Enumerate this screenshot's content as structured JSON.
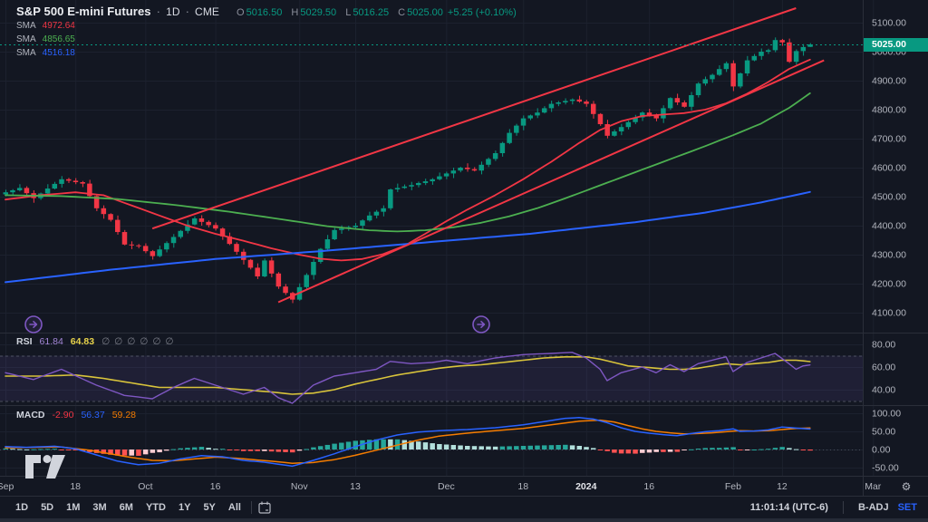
{
  "header": {
    "symbol": "S&P 500 E-mini Futures",
    "separator1": "·",
    "interval": "1D",
    "separator2": "·",
    "exchange": "CME",
    "ohlc": {
      "o_label": "O",
      "o": "5016.50",
      "h_label": "H",
      "h": "5029.50",
      "l_label": "L",
      "l": "5016.25",
      "c_label": "C",
      "c": "5025.00",
      "change": "+5.25 (+0.10%)"
    },
    "sma_rows": [
      {
        "label": "SMA",
        "value": "4972.64",
        "color": "#f23645"
      },
      {
        "label": "SMA",
        "value": "4856.65",
        "color": "#4caf50"
      },
      {
        "label": "SMA",
        "value": "4516.18",
        "color": "#2962ff"
      }
    ]
  },
  "rsi_row": {
    "label": "RSI",
    "rsi": "61.84",
    "rsi_color": "#a487d8",
    "rsi_ma": "64.83",
    "rsi_ma_color": "#e7d24b",
    "empties": [
      "∅",
      "∅",
      "∅",
      "∅",
      "∅",
      "∅"
    ]
  },
  "macd_row": {
    "label": "MACD",
    "hist": "-2.90",
    "hist_color": "#f23645",
    "macd": "56.37",
    "macd_color": "#2962ff",
    "signal": "59.28",
    "signal_color": "#f57c00"
  },
  "toolbar": {
    "ranges": [
      "1D",
      "5D",
      "1M",
      "3M",
      "6M",
      "YTD",
      "1Y",
      "5Y",
      "All"
    ],
    "clock": "11:01:14 (UTC-6)",
    "adjustment": "B-ADJ",
    "session": "SET"
  },
  "colors": {
    "background": "#131722",
    "grid": "#1c212e",
    "separator": "#2a2e39",
    "axis_text": "#b2b5be",
    "up": "#089981",
    "down": "#f23645",
    "price_line": "#089981",
    "price_tag_bg": "#089981",
    "sma_fast": "#f23645",
    "sma_mid": "#4caf50",
    "sma_slow": "#2962ff",
    "channel": "#f23645",
    "rsi_line": "#7e57c2",
    "rsi_ma_line": "#d9c43b",
    "rsi_band_fill": "rgba(126,87,194,0.12)",
    "macd_line": "#2962ff",
    "signal_line": "#f57c00",
    "hist_up": "#26a69a",
    "hist_up_weak": "#b2dfdb",
    "hist_down": "#ff5252",
    "hist_down_weak": "#ffcdd2",
    "pane_icon": "#7e57c2",
    "logo": "#d1d4dc"
  },
  "chart_data": {
    "type": "candlestick",
    "title": "S&P 500 E-mini Futures · 1D · CME",
    "x_unit": "trading_day_index",
    "ylim": [
      4030,
      5180
    ],
    "price_ticks": [
      5100,
      5000,
      4900,
      4800,
      4700,
      4600,
      4500,
      4400,
      4300,
      4200,
      4100
    ],
    "time_ticks": [
      {
        "day": 0,
        "label": "Sep"
      },
      {
        "day": 10,
        "label": "18"
      },
      {
        "day": 20,
        "label": "Oct"
      },
      {
        "day": 30,
        "label": "16"
      },
      {
        "day": 42,
        "label": "Nov"
      },
      {
        "day": 50,
        "label": "13"
      },
      {
        "day": 63,
        "label": "Dec"
      },
      {
        "day": 74,
        "label": "18"
      },
      {
        "day": 83,
        "label": "2024"
      },
      {
        "day": 92,
        "label": "16"
      },
      {
        "day": 104,
        "label": "Feb"
      },
      {
        "day": 111,
        "label": "12"
      },
      {
        "day": 124,
        "label": "Mar"
      }
    ],
    "last_price_line": 5025.0,
    "candles": {
      "first_open": 4508,
      "closes": [
        4515,
        4522,
        4530,
        4512,
        4495,
        4511,
        4528,
        4544,
        4560,
        4555,
        4550,
        4545,
        4502,
        4460,
        4440,
        4420,
        4378,
        4335,
        4332,
        4330,
        4312,
        4295,
        4318,
        4340,
        4361,
        4382,
        4404,
        4425,
        4413,
        4402,
        4390,
        4363,
        4337,
        4310,
        4282,
        4255,
        4225,
        4280,
        4235,
        4190,
        4168,
        4145,
        4188,
        4230,
        4275,
        4320,
        4353,
        4385,
        4390,
        4395,
        4400,
        4418,
        4435,
        4448,
        4460,
        4525,
        4530,
        4535,
        4540,
        4547,
        4553,
        4560,
        4570,
        4580,
        4590,
        4600,
        4595,
        4590,
        4610,
        4630,
        4650,
        4685,
        4720,
        4745,
        4770,
        4780,
        4790,
        4805,
        4820,
        4825,
        4830,
        4835,
        4828,
        4820,
        4785,
        4750,
        4710,
        4725,
        4740,
        4757,
        4773,
        4790,
        4780,
        4770,
        4805,
        4840,
        4825,
        4810,
        4850,
        4890,
        4905,
        4920,
        4940,
        4960,
        4880,
        4925,
        4970,
        4985,
        5000,
        5005,
        5040,
        5032,
        4965,
        5002,
        5016,
        5025
      ],
      "wick_high_pattern": [
        9,
        4,
        13,
        6,
        10,
        3,
        15,
        7,
        11,
        5
      ],
      "wick_low_pattern": [
        7,
        12,
        4,
        10,
        16,
        6,
        9,
        3,
        13,
        8
      ],
      "last_candle": {
        "o": 5016.5,
        "h": 5029.5,
        "l": 5016.25,
        "c": 5025.0
      }
    },
    "moving_averages": [
      {
        "name": "SMA fast",
        "current": 4972.64,
        "color_key": "sma_fast",
        "width": 1.8,
        "anchors": [
          [
            0,
            4490
          ],
          [
            5,
            4505
          ],
          [
            10,
            4515
          ],
          [
            14,
            4505
          ],
          [
            18,
            4470
          ],
          [
            22,
            4435
          ],
          [
            26,
            4400
          ],
          [
            30,
            4372
          ],
          [
            34,
            4348
          ],
          [
            38,
            4322
          ],
          [
            42,
            4300
          ],
          [
            45,
            4286
          ],
          [
            48,
            4280
          ],
          [
            51,
            4285
          ],
          [
            54,
            4302
          ],
          [
            57,
            4330
          ],
          [
            60,
            4372
          ],
          [
            63,
            4415
          ],
          [
            66,
            4455
          ],
          [
            70,
            4505
          ],
          [
            74,
            4560
          ],
          [
            78,
            4620
          ],
          [
            82,
            4685
          ],
          [
            85,
            4730
          ],
          [
            88,
            4760
          ],
          [
            91,
            4778
          ],
          [
            94,
            4783
          ],
          [
            97,
            4788
          ],
          [
            100,
            4800
          ],
          [
            103,
            4822
          ],
          [
            106,
            4855
          ],
          [
            109,
            4895
          ],
          [
            112,
            4940
          ],
          [
            115,
            4972.6
          ]
        ]
      },
      {
        "name": "SMA mid",
        "current": 4856.65,
        "color_key": "sma_mid",
        "width": 1.8,
        "anchors": [
          [
            0,
            4505
          ],
          [
            8,
            4502
          ],
          [
            16,
            4492
          ],
          [
            24,
            4472
          ],
          [
            32,
            4448
          ],
          [
            40,
            4420
          ],
          [
            46,
            4398
          ],
          [
            52,
            4384
          ],
          [
            56,
            4380
          ],
          [
            60,
            4384
          ],
          [
            64,
            4394
          ],
          [
            68,
            4410
          ],
          [
            72,
            4432
          ],
          [
            76,
            4460
          ],
          [
            80,
            4494
          ],
          [
            84,
            4530
          ],
          [
            88,
            4566
          ],
          [
            92,
            4602
          ],
          [
            96,
            4638
          ],
          [
            100,
            4674
          ],
          [
            104,
            4712
          ],
          [
            108,
            4752
          ],
          [
            112,
            4806
          ],
          [
            115,
            4856.6
          ]
        ]
      },
      {
        "name": "SMA slow",
        "current": 4516.18,
        "color_key": "sma_slow",
        "width": 2,
        "anchors": [
          [
            0,
            4205
          ],
          [
            15,
            4248
          ],
          [
            30,
            4285
          ],
          [
            45,
            4312
          ],
          [
            60,
            4342
          ],
          [
            75,
            4372
          ],
          [
            90,
            4412
          ],
          [
            100,
            4445
          ],
          [
            108,
            4480
          ],
          [
            115,
            4516.2
          ]
        ]
      }
    ],
    "trend_channel": [
      {
        "name": "upper",
        "from_day": 21,
        "from_price": 4390,
        "to_day": 113,
        "to_price": 5150
      },
      {
        "name": "lower",
        "from_day": 39,
        "from_price": 4136,
        "to_day": 117,
        "to_price": 4970
      }
    ],
    "rsi_pane": {
      "ticks": [
        80,
        60,
        40
      ],
      "bands": [
        70,
        30
      ],
      "current_rsi": 61.84,
      "current_rsi_ma": 64.83,
      "rsi_anchors": [
        [
          0,
          55
        ],
        [
          4,
          49
        ],
        [
          8,
          58
        ],
        [
          13,
          44
        ],
        [
          17,
          35
        ],
        [
          21,
          32
        ],
        [
          24,
          42
        ],
        [
          27,
          50
        ],
        [
          31,
          42
        ],
        [
          34,
          36
        ],
        [
          37,
          42
        ],
        [
          39,
          33
        ],
        [
          41,
          28
        ],
        [
          44,
          44
        ],
        [
          47,
          52
        ],
        [
          50,
          55
        ],
        [
          53,
          58
        ],
        [
          55,
          65
        ],
        [
          58,
          63
        ],
        [
          61,
          64
        ],
        [
          63,
          66
        ],
        [
          66,
          63
        ],
        [
          70,
          68
        ],
        [
          74,
          71
        ],
        [
          78,
          72
        ],
        [
          81,
          73
        ],
        [
          83,
          68
        ],
        [
          85,
          58
        ],
        [
          86,
          48
        ],
        [
          88,
          55
        ],
        [
          91,
          60
        ],
        [
          93,
          55
        ],
        [
          95,
          62
        ],
        [
          97,
          56
        ],
        [
          99,
          63
        ],
        [
          101,
          66
        ],
        [
          103,
          69
        ],
        [
          104,
          56
        ],
        [
          106,
          64
        ],
        [
          108,
          68
        ],
        [
          110,
          72
        ],
        [
          112,
          63
        ],
        [
          113,
          58
        ],
        [
          114,
          61
        ],
        [
          115,
          61.84
        ]
      ],
      "rsi_ma_anchors": [
        [
          0,
          52
        ],
        [
          5,
          52
        ],
        [
          10,
          53
        ],
        [
          14,
          50
        ],
        [
          18,
          46
        ],
        [
          22,
          42
        ],
        [
          26,
          42
        ],
        [
          30,
          42
        ],
        [
          34,
          40
        ],
        [
          38,
          38
        ],
        [
          41,
          36
        ],
        [
          44,
          37
        ],
        [
          47,
          40
        ],
        [
          50,
          45
        ],
        [
          53,
          49
        ],
        [
          56,
          53
        ],
        [
          59,
          56
        ],
        [
          62,
          59
        ],
        [
          65,
          61
        ],
        [
          68,
          62
        ],
        [
          71,
          64
        ],
        [
          74,
          66
        ],
        [
          77,
          68
        ],
        [
          80,
          69
        ],
        [
          83,
          69
        ],
        [
          85,
          67
        ],
        [
          87,
          64
        ],
        [
          89,
          61
        ],
        [
          91,
          60
        ],
        [
          93,
          59
        ],
        [
          95,
          58
        ],
        [
          97,
          58
        ],
        [
          99,
          59
        ],
        [
          101,
          61
        ],
        [
          103,
          63
        ],
        [
          105,
          62
        ],
        [
          107,
          63
        ],
        [
          109,
          64
        ],
        [
          111,
          66
        ],
        [
          113,
          66
        ],
        [
          115,
          64.83
        ]
      ]
    },
    "macd_pane": {
      "ticks": [
        100,
        50,
        0,
        -50
      ],
      "current_hist": -2.9,
      "current_macd": 56.37,
      "current_signal": 59.28,
      "macd_anchors": [
        [
          0,
          8
        ],
        [
          3,
          6
        ],
        [
          7,
          9
        ],
        [
          10,
          2
        ],
        [
          13,
          -15
        ],
        [
          16,
          -32
        ],
        [
          19,
          -42
        ],
        [
          22,
          -38
        ],
        [
          25,
          -26
        ],
        [
          28,
          -17
        ],
        [
          31,
          -20
        ],
        [
          34,
          -30
        ],
        [
          37,
          -35
        ],
        [
          41,
          -46
        ],
        [
          44,
          -30
        ],
        [
          47,
          -12
        ],
        [
          50,
          8
        ],
        [
          53,
          26
        ],
        [
          56,
          40
        ],
        [
          59,
          48
        ],
        [
          62,
          52
        ],
        [
          66,
          55
        ],
        [
          70,
          60
        ],
        [
          74,
          68
        ],
        [
          78,
          80
        ],
        [
          80,
          86
        ],
        [
          82,
          88
        ],
        [
          84,
          84
        ],
        [
          86,
          74
        ],
        [
          88,
          60
        ],
        [
          90,
          50
        ],
        [
          92,
          45
        ],
        [
          94,
          41
        ],
        [
          96,
          38
        ],
        [
          98,
          44
        ],
        [
          100,
          49
        ],
        [
          102,
          52
        ],
        [
          104,
          57
        ],
        [
          105,
          50
        ],
        [
          107,
          51
        ],
        [
          109,
          54
        ],
        [
          111,
          62
        ],
        [
          113,
          59
        ],
        [
          115,
          56.4
        ]
      ],
      "signal_anchors": [
        [
          0,
          5
        ],
        [
          4,
          6
        ],
        [
          8,
          7
        ],
        [
          12,
          -2
        ],
        [
          15,
          -12
        ],
        [
          18,
          -22
        ],
        [
          21,
          -30
        ],
        [
          24,
          -31
        ],
        [
          27,
          -26
        ],
        [
          30,
          -21
        ],
        [
          33,
          -24
        ],
        [
          36,
          -29
        ],
        [
          39,
          -34
        ],
        [
          41,
          -38
        ],
        [
          44,
          -36
        ],
        [
          47,
          -28
        ],
        [
          50,
          -16
        ],
        [
          53,
          -2
        ],
        [
          56,
          12
        ],
        [
          59,
          26
        ],
        [
          62,
          37
        ],
        [
          66,
          45
        ],
        [
          70,
          52
        ],
        [
          74,
          58
        ],
        [
          78,
          68
        ],
        [
          82,
          78
        ],
        [
          85,
          81
        ],
        [
          87,
          76
        ],
        [
          89,
          66
        ],
        [
          91,
          57
        ],
        [
          93,
          50
        ],
        [
          95,
          46
        ],
        [
          97,
          43
        ],
        [
          99,
          44
        ],
        [
          101,
          46
        ],
        [
          103,
          49
        ],
        [
          105,
          52
        ],
        [
          107,
          51
        ],
        [
          109,
          52
        ],
        [
          111,
          55
        ],
        [
          113,
          58
        ],
        [
          115,
          59.3
        ]
      ]
    }
  }
}
